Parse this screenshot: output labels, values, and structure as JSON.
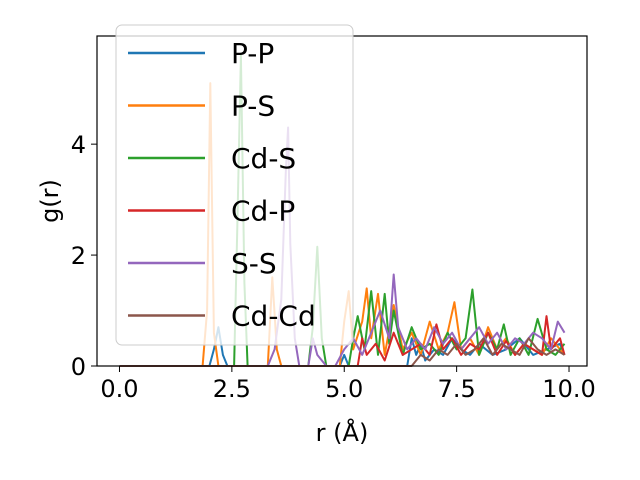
{
  "chart_data": {
    "type": "line",
    "xlabel": "r (Å)",
    "ylabel": "g(r)",
    "xlim": [
      -0.5,
      10.4
    ],
    "ylim": [
      0,
      5.95
    ],
    "xticks": [
      0.0,
      2.5,
      5.0,
      7.5,
      10.0
    ],
    "xtick_labels": [
      "0.0",
      "2.5",
      "5.0",
      "7.5",
      "10.0"
    ],
    "yticks": [
      0,
      2,
      4
    ],
    "ytick_labels": [
      "0",
      "2",
      "4"
    ],
    "grid": false,
    "legend_position": "top-left",
    "series": [
      {
        "name": "P-P",
        "color": "#1f77b4",
        "x": [
          0,
          2.0,
          2.1,
          2.2,
          2.3,
          2.4,
          4.9,
          5.0,
          5.1,
          6.4,
          6.5,
          6.6,
          6.7,
          6.8,
          7.0,
          7.2,
          7.4,
          7.6,
          7.8,
          8.0,
          8.3,
          8.6,
          8.9,
          9.2,
          9.5,
          9.8,
          9.9
        ],
        "y": [
          0,
          0,
          0.3,
          0.7,
          0.2,
          0,
          0,
          0.2,
          0,
          0,
          0.5,
          0.2,
          0.4,
          0.1,
          0.3,
          0.2,
          0.5,
          0.3,
          0.2,
          0.4,
          0.2,
          0.3,
          0.5,
          0.2,
          0.3,
          0.4,
          0.2
        ]
      },
      {
        "name": "P-S",
        "color": "#ff7f0e",
        "x": [
          0,
          1.85,
          1.95,
          2.02,
          2.1,
          2.2,
          3.3,
          3.4,
          3.5,
          3.6,
          4.9,
          5.0,
          5.1,
          5.2,
          5.4,
          5.5,
          5.6,
          5.75,
          5.9,
          6.1,
          6.3,
          6.5,
          6.7,
          6.9,
          7.1,
          7.3,
          7.45,
          7.6,
          7.8,
          8.0,
          8.2,
          8.4,
          8.6,
          8.8,
          9.0,
          9.2,
          9.4,
          9.6,
          9.8,
          9.9
        ],
        "y": [
          0,
          0,
          1.0,
          5.1,
          0.6,
          0,
          0,
          1.6,
          0.3,
          0,
          0,
          0.8,
          1.35,
          0.3,
          0.8,
          1.4,
          0.5,
          1.3,
          0.2,
          1.1,
          0.3,
          0.6,
          0.2,
          0.8,
          0.3,
          0.6,
          1.15,
          0.3,
          0.5,
          0.2,
          0.7,
          0.3,
          0.5,
          0.2,
          0.4,
          0.3,
          0.2,
          0.5,
          0.3,
          0.2
        ]
      },
      {
        "name": "Cd-S",
        "color": "#2ca02c",
        "x": [
          0,
          2.55,
          2.62,
          2.7,
          2.78,
          2.85,
          4.2,
          4.3,
          4.4,
          4.5,
          4.6,
          5.1,
          5.2,
          5.3,
          5.45,
          5.6,
          5.75,
          5.9,
          6.0,
          6.1,
          6.3,
          6.5,
          6.7,
          6.9,
          7.1,
          7.3,
          7.5,
          7.7,
          7.85,
          8.0,
          8.2,
          8.4,
          8.55,
          8.7,
          8.9,
          9.1,
          9.3,
          9.5,
          9.7,
          9.9
        ],
        "y": [
          0,
          0,
          2.5,
          5.6,
          1.5,
          0,
          0,
          0.7,
          2.15,
          0.5,
          0,
          0,
          0.5,
          0.9,
          0.3,
          1.35,
          0.2,
          1.3,
          0.4,
          1.0,
          0.2,
          0.7,
          0.3,
          0.4,
          0.2,
          0.6,
          0.3,
          0.5,
          1.38,
          0.2,
          0.6,
          0.3,
          0.75,
          0.2,
          0.5,
          0.2,
          0.85,
          0.3,
          0.2,
          0.4
        ]
      },
      {
        "name": "Cd-P",
        "color": "#d62728",
        "x": [
          0,
          5.3,
          5.4,
          5.5,
          5.7,
          5.9,
          6.1,
          6.3,
          6.5,
          6.7,
          6.9,
          7.05,
          7.2,
          7.4,
          7.6,
          7.8,
          8.0,
          8.2,
          8.4,
          8.6,
          8.8,
          9.0,
          9.2,
          9.4,
          9.5,
          9.6,
          9.8,
          9.9
        ],
        "y": [
          0,
          0,
          0.5,
          0.2,
          0.4,
          0.1,
          0.6,
          0.2,
          0.3,
          0.4,
          0.2,
          0.75,
          0.3,
          0.5,
          0.2,
          0.4,
          0.3,
          0.6,
          0.2,
          0.45,
          0.2,
          0.4,
          0.3,
          0.2,
          0.9,
          0.3,
          0.5,
          0.2
        ]
      },
      {
        "name": "S-S",
        "color": "#9467bd",
        "x": [
          0,
          3.3,
          3.45,
          3.6,
          3.7,
          3.75,
          3.8,
          3.9,
          4.0,
          4.2,
          4.3,
          4.4,
          4.6,
          4.8,
          5.0,
          5.2,
          5.4,
          5.6,
          5.8,
          6.0,
          6.1,
          6.2,
          6.4,
          6.6,
          6.8,
          7.0,
          7.2,
          7.4,
          7.6,
          7.8,
          8.0,
          8.2,
          8.4,
          8.6,
          8.8,
          9.0,
          9.2,
          9.4,
          9.6,
          9.75,
          9.9
        ],
        "y": [
          0,
          0,
          0.3,
          1.2,
          3.5,
          4.3,
          2.2,
          0.5,
          0,
          0,
          0.5,
          0.2,
          0,
          0,
          0.3,
          0.5,
          0.2,
          0.6,
          1.0,
          0.5,
          1.65,
          0.7,
          0.3,
          0.5,
          0.3,
          0.7,
          0.4,
          0.6,
          0.3,
          0.5,
          0.7,
          0.4,
          0.6,
          0.3,
          0.5,
          0.4,
          0.6,
          0.5,
          0.3,
          0.8,
          0.6
        ]
      },
      {
        "name": "Cd-Cd",
        "color": "#8c564b",
        "x": [
          0,
          6.5,
          6.7,
          6.9,
          7.1,
          7.3,
          7.5,
          7.7,
          7.9,
          8.1,
          8.3,
          8.5,
          8.7,
          8.9,
          9.1,
          9.3,
          9.5,
          9.7,
          9.9
        ],
        "y": [
          0,
          0,
          0.2,
          0.1,
          0.3,
          0.2,
          0.4,
          0.2,
          0.3,
          0.5,
          0.2,
          0.4,
          0.3,
          0.2,
          0.5,
          0.3,
          0.2,
          0.3,
          0.2
        ]
      }
    ]
  }
}
